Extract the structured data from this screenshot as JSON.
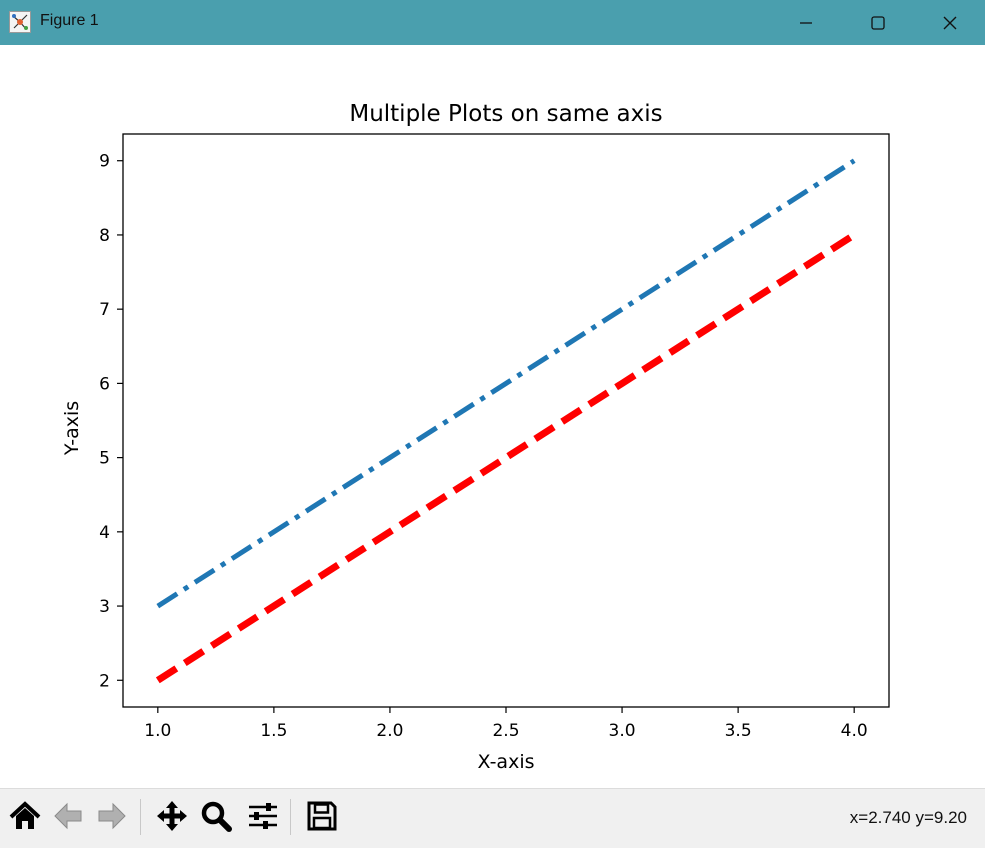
{
  "window": {
    "title": "Figure 1",
    "icons": {
      "app": "matplotlib-logo-icon",
      "minimize": "minimize-icon",
      "maximize": "maximize-icon",
      "close": "close-icon"
    }
  },
  "toolbar": {
    "buttons": [
      {
        "name": "home",
        "icon": "home-icon"
      },
      {
        "name": "back",
        "icon": "arrow-left-icon"
      },
      {
        "name": "forward",
        "icon": "arrow-right-icon"
      },
      {
        "name": "pan",
        "icon": "move-icon"
      },
      {
        "name": "zoom",
        "icon": "magnifier-icon"
      },
      {
        "name": "subplots",
        "icon": "sliders-icon"
      },
      {
        "name": "save",
        "icon": "floppy-disk-icon"
      }
    ],
    "coords": "x=2.740 y=9.20"
  },
  "chart_data": {
    "type": "line",
    "title": "Multiple Plots on same axis",
    "xlabel": "X-axis",
    "ylabel": "Y-axis",
    "xlim": [
      0.85,
      4.15
    ],
    "ylim": [
      1.64,
      9.36
    ],
    "xticks": [
      1.0,
      1.5,
      2.0,
      2.5,
      3.0,
      3.5,
      4.0
    ],
    "xtick_labels": [
      "1.0",
      "1.5",
      "2.0",
      "2.5",
      "3.0",
      "3.5",
      "4.0"
    ],
    "yticks": [
      2,
      3,
      4,
      5,
      6,
      7,
      8,
      9
    ],
    "ytick_labels": [
      "2",
      "3",
      "4",
      "5",
      "6",
      "7",
      "8",
      "9"
    ],
    "grid": false,
    "series": [
      {
        "x": [
          1,
          2,
          3,
          4
        ],
        "y": [
          3,
          5,
          7,
          9
        ],
        "color": "#1f77b4",
        "linestyle": "dash-dot"
      },
      {
        "x": [
          1,
          2,
          3,
          4
        ],
        "y": [
          2,
          4,
          6,
          8
        ],
        "color": "#ff0000",
        "linestyle": "dashed"
      }
    ]
  }
}
